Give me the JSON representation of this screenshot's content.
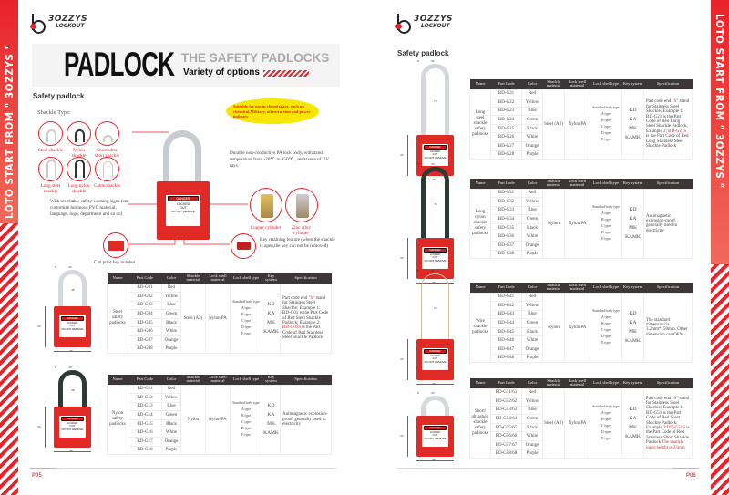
{
  "brand": {
    "name": "3OZZYS",
    "sub": "LOCKOUT",
    "strip_text": "LOTO START FROM \" 3OZZYS \"",
    "accent": "#e8232a"
  },
  "banner": {
    "title": "PADLOCK",
    "subtitle": "THE SAFETY PADLOCKS",
    "tagline": "Variety of options"
  },
  "left": {
    "section": "Safety padlock",
    "shackle_type_label": "Shackle Type:",
    "shackles": [
      "Steel shackle",
      "Nylon shackle",
      "Short/ultra short shackle",
      "Long steel shackle",
      "Long nylon shackle",
      "Cable shackle"
    ],
    "callout": "Suitable for use in closed space, such as: chemical,Military, oil extraction and power industry",
    "body_note": "Durable non-conductive PA lock body, withstand temperature from -20℃ to 150℃ , resistance of UV rays.",
    "sign_note": "With rewritable safety warning signs (can customize luminous PVC material, language, logo, department and so on)",
    "key_number": "Can print key number",
    "cylinders": [
      "Copper cylinder",
      "Zinc alloy cylinder"
    ],
    "retain_note": "Key retaining feature (when the shackle is open,the key can not be removed)",
    "page": "P05"
  },
  "right": {
    "section": "Safety padlock",
    "page": "P06"
  },
  "lock_label": {
    "danger": "DANGER",
    "line1": "LOCKED",
    "line2": "OUT",
    "line3": "DO NOT REMOVE"
  },
  "dims": {
    "a": "8",
    "b": "20",
    "c": "38",
    "d": "45",
    "long": "76",
    "std": "38"
  },
  "headers": [
    "Name",
    "Part Code",
    "Color",
    "Shackle material",
    "Lock shell material",
    "Lock shell type",
    "Key system",
    "Specification"
  ],
  "colors": [
    "Red",
    "Yellow",
    "Blue",
    "Green",
    "Black",
    "White",
    "Orange",
    "Purple"
  ],
  "types_title": "Standard body type",
  "types": [
    "A type",
    "B type",
    "C type",
    "D type",
    "E type"
  ],
  "keys": [
    "KD",
    "KA",
    "MK",
    "KAMK"
  ],
  "tables": [
    {
      "name": "Steel safety padlocks",
      "codes": [
        "BD-G01",
        "BD-G02",
        "BD-G03",
        "BD-G04",
        "BD-G05",
        "BD-G06",
        "BD-G07",
        "BD-G08"
      ],
      "shackle": "Steel (A3)",
      "shell": "Nylon PA",
      "spec": [
        {
          "t": "Part code end \""
        },
        {
          "t": "S",
          "red": true
        },
        {
          "t": "\" stand for Stainless Steel Shackle; Example 1: BD-G01 is the Part Code of Red Steel Shackle Padlock; Example 2: "
        },
        {
          "t": "BD-G01S",
          "red": true
        },
        {
          "t": " is the Part Code of Red Stainless Steel Shackle Padlock"
        }
      ]
    },
    {
      "name": "Nylon safety padlocks",
      "codes": [
        "BD-G11",
        "BD-G12",
        "BD-G13",
        "BD-G14",
        "BD-G15",
        "BD-G16",
        "BD-G17",
        "BD-G18"
      ],
      "shackle": "Nylon",
      "shell": "Nylon PA",
      "spec": [
        {
          "t": "Antimagnetic explosion-proof, generally used in electricity"
        }
      ]
    },
    {
      "name": "Long steel shackle safety padlocks",
      "codes": [
        "BD-G21",
        "BD-G22",
        "BD-G23",
        "BD-G24",
        "BD-G25",
        "BD-G26",
        "BD-G27",
        "BD-G28"
      ],
      "shackle": "Steel (A3)",
      "shell": "Nylon PA",
      "spec": [
        {
          "t": "Part code end \""
        },
        {
          "t": "S",
          "red": true
        },
        {
          "t": "\" stand for Stainless Steel Shackle; Example 1: BD-G21 is the Part Code of Red Long Steel Shackle Padlock; Example 2: "
        },
        {
          "t": "BD-G21S",
          "red": true
        },
        {
          "t": " is the Part Code of Red Long Stainless Steel Shackle Padlock"
        }
      ]
    },
    {
      "name": "Long nylon shackle safety padlocks",
      "codes": [
        "BD-G31",
        "BD-G32",
        "BD-G33",
        "BD-G34",
        "BD-G35",
        "BD-G36",
        "BD-G37",
        "BD-G38"
      ],
      "shackle": "Nylon",
      "shell": "Nylon PA",
      "spec": [
        {
          "t": "Antimagnetic explosion-proof, generally used in electricity"
        }
      ]
    },
    {
      "name": "Wire shackle padlocks",
      "codes": [
        "BD-G41",
        "BD-G42",
        "BD-G43",
        "BD-G44",
        "BD-G45",
        "BD-G46",
        "BD-G47",
        "BD-G48"
      ],
      "shackle": "Nylon",
      "shell": "Nylon PA",
      "spec": [
        {
          "t": "The standard dimension is 3.2mm*150mm. Other dimension can OEM"
        }
      ]
    },
    {
      "name": "Short/ ultrashort shackle safety padlocks",
      "codes": [
        "BD-G51/61",
        "BD-G52/62",
        "BD-G53/63",
        "BD-G54/64",
        "BD-G55/65",
        "BD-G56/66",
        "BD-G57/67",
        "BD-G58/68"
      ],
      "shackle": "Steel (A3)",
      "shell": "Nylon PA",
      "spec": [
        {
          "t": "Part code end \""
        },
        {
          "t": "S",
          "red": true
        },
        {
          "t": "\" stand for Stainless Steel Shackle; Example 1: BD-G51 is the Part Code of Red Short Shackle Padlock; Example 2:"
        },
        {
          "t": "BD-G51S",
          "red": true
        },
        {
          "t": " is the Part Code of Red Stainless Short Shackle Padlock "
        },
        {
          "t": "The shackle inner height is 25mm",
          "red": true
        }
      ]
    }
  ]
}
